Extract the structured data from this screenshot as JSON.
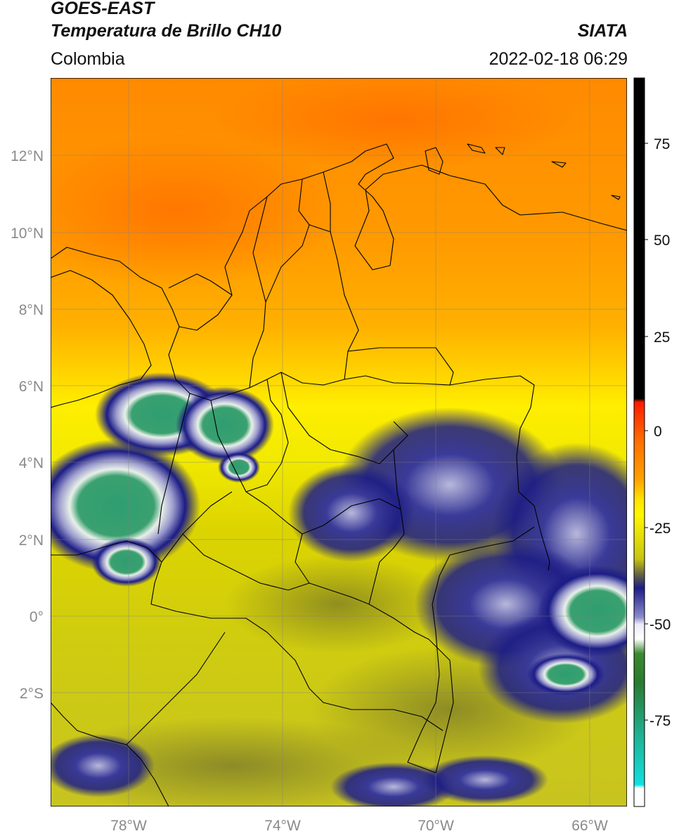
{
  "header": {
    "satellite": "GOES-EAST",
    "product": "Temperatura de Brillo CH10",
    "agency": "SIATA",
    "region": "Colombia",
    "datetime": "2022-02-18 06:29"
  },
  "axes": {
    "lat_labels": [
      "12°N",
      "10°N",
      "8°N",
      "6°N",
      "4°N",
      "2°N",
      "0°",
      "2°S"
    ],
    "lon_labels": [
      "78°W",
      "74°W",
      "70°W",
      "66°W"
    ]
  },
  "colorbar": {
    "tick_labels": [
      "75",
      "50",
      "25",
      "0",
      "-25",
      "-50",
      "-75"
    ]
  },
  "colors": {
    "ocean_warm": "#ff8c00",
    "land_mid": "#ffc000",
    "humid": "#d9d400",
    "cloud_dark": "#1a1a80",
    "cloud_cold": "#2e9e6e",
    "border": "#000000"
  }
}
